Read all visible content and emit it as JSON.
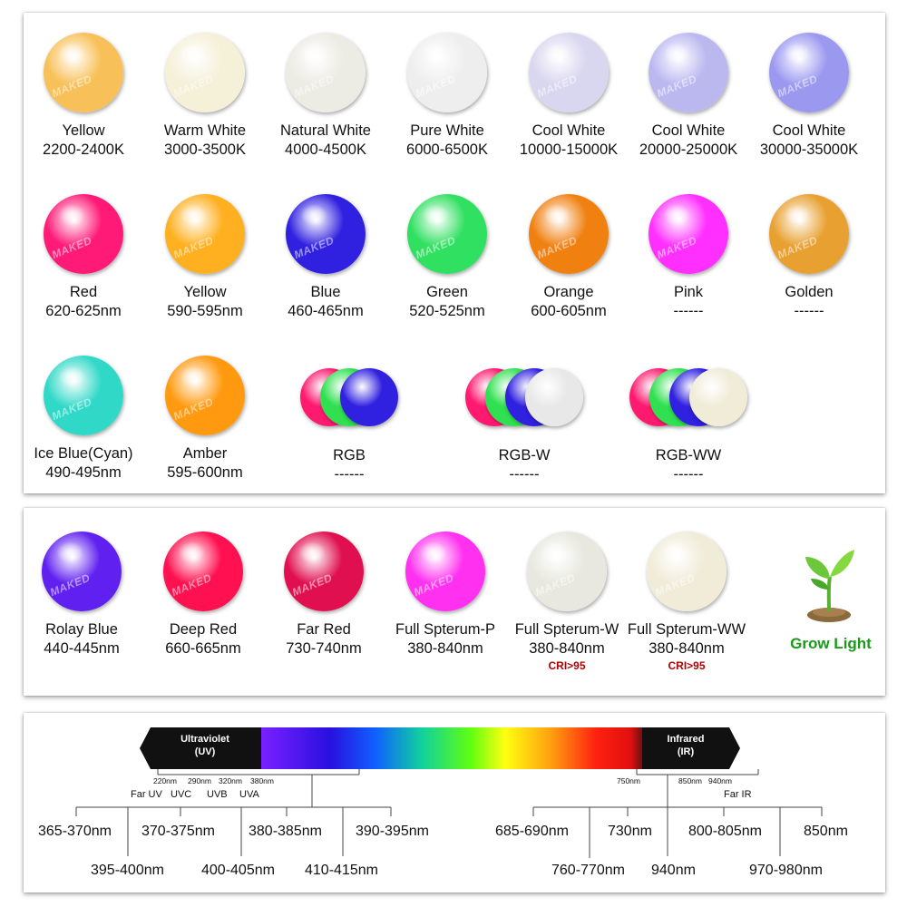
{
  "row1": [
    {
      "name": "Yellow",
      "range": "2200-2400K",
      "color": "#f8c058"
    },
    {
      "name": "Warm White",
      "range": "3000-3500K",
      "color": "#f5f0d8"
    },
    {
      "name": "Natural White",
      "range": "4000-4500K",
      "color": "#ecebe4"
    },
    {
      "name": "Pure White",
      "range": "6000-6500K",
      "color": "#eeeeee"
    },
    {
      "name": "Cool White",
      "range": "10000-15000K",
      "color": "#d9d6ef"
    },
    {
      "name": "Cool White",
      "range": "20000-25000K",
      "color": "#bbb8f0"
    },
    {
      "name": "Cool  White",
      "range": "30000-35000K",
      "color": "#9b98f0"
    }
  ],
  "row2": [
    {
      "name": "Red",
      "range": "620-625nm",
      "color": "#ff1a78"
    },
    {
      "name": "Yellow",
      "range": "590-595nm",
      "color": "#ffb020"
    },
    {
      "name": "Blue",
      "range": "460-465nm",
      "color": "#3020e0"
    },
    {
      "name": "Green",
      "range": "520-525nm",
      "color": "#30e060"
    },
    {
      "name": "Orange",
      "range": "600-605nm",
      "color": "#f08010"
    },
    {
      "name": "Pink",
      "range": "------",
      "color": "#ff30ff"
    },
    {
      "name": "Golden",
      "range": "------",
      "color": "#e8a030"
    }
  ],
  "row3": [
    {
      "name": "Ice Blue(Cyan)",
      "range": "490-495nm",
      "color": "#30d8c8"
    },
    {
      "name": "Amber",
      "range": "595-600nm",
      "color": "#ff9a10"
    }
  ],
  "groups": [
    {
      "name": "RGB",
      "range": "------",
      "colors": [
        "#ff1a70",
        "#30e050",
        "#3020e0"
      ]
    },
    {
      "name": "RGB-W",
      "range": "------",
      "colors": [
        "#ff1a70",
        "#30e050",
        "#3020e0",
        "#e8e8e8"
      ]
    },
    {
      "name": "RGB-WW",
      "range": "------",
      "colors": [
        "#ff1a70",
        "#30e050",
        "#3020e0",
        "#f0ecd8"
      ]
    }
  ],
  "row4": [
    {
      "name": "Rolay Blue",
      "range": "440-445nm",
      "color": "#6020f0",
      "cri": ""
    },
    {
      "name": "Deep Red",
      "range": "660-665nm",
      "color": "#ff1050",
      "cri": ""
    },
    {
      "name": "Far Red",
      "range": "730-740nm",
      "color": "#e01050",
      "cri": ""
    },
    {
      "name": "Full Spterum-P",
      "range": "380-840nm",
      "color": "#ff30f0",
      "cri": ""
    },
    {
      "name": "Full Spterum-W",
      "range": "380-840nm",
      "color": "#e8e8e0",
      "cri": "CRI>95"
    },
    {
      "name": "Full Spterum-WW",
      "range": "380-840nm",
      "color": "#f0ecd8",
      "cri": "CRI>95"
    }
  ],
  "grow_light": "Grow Light",
  "watermark": "MAKED",
  "spectrum": {
    "uv_label_line1": "Ultraviolet",
    "uv_label_line2": "(UV)",
    "ir_label_line1": "Infrared",
    "ir_label_line2": "(IR)",
    "nm_marks": [
      "220nm",
      "290nm",
      "320nm",
      "380nm",
      "750nm",
      "850nm",
      "940nm"
    ],
    "bands": [
      "Far UV",
      "UVC",
      "UVB",
      "UVA",
      "Far IR"
    ],
    "uv_top": [
      "365-370nm",
      "370-375nm",
      "380-385nm",
      "390-395nm"
    ],
    "uv_bottom": [
      "395-400nm",
      "400-405nm",
      "410-415nm"
    ],
    "ir_top": [
      "685-690nm",
      "730nm",
      "800-805nm",
      "850nm"
    ],
    "ir_bottom": [
      "760-770nm",
      "940nm",
      "970-980nm"
    ]
  }
}
